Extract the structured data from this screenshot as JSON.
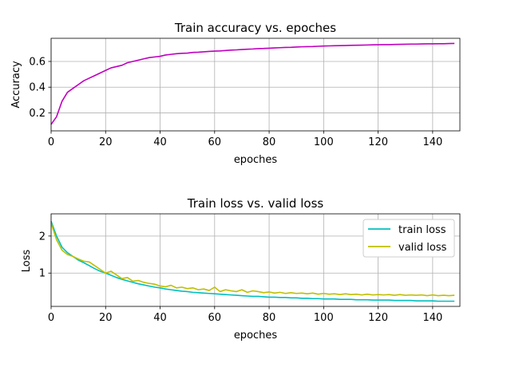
{
  "chart_data": [
    {
      "type": "line",
      "title": "Train accuracy vs. epoches",
      "xlabel": "epoches",
      "ylabel": "Accuracy",
      "xlim": [
        0,
        150
      ],
      "ylim": [
        0.06,
        0.78
      ],
      "xticks": [
        0,
        20,
        40,
        60,
        80,
        100,
        120,
        140
      ],
      "yticks": [
        0.2,
        0.4,
        0.6
      ],
      "ytick_labels": [
        "0.2",
        "0.4",
        "0.6"
      ],
      "grid": true,
      "series": [
        {
          "color": "#bf00bf",
          "x": [
            0,
            2,
            4,
            6,
            8,
            10,
            12,
            14,
            16,
            18,
            20,
            22,
            24,
            26,
            28,
            30,
            32,
            34,
            36,
            38,
            40,
            42,
            44,
            46,
            48,
            50,
            52,
            54,
            56,
            58,
            60,
            62,
            64,
            66,
            68,
            70,
            72,
            74,
            76,
            78,
            80,
            82,
            84,
            86,
            88,
            90,
            92,
            94,
            96,
            98,
            100,
            102,
            104,
            106,
            108,
            110,
            112,
            114,
            116,
            118,
            120,
            122,
            124,
            126,
            128,
            130,
            132,
            134,
            136,
            138,
            140,
            142,
            144,
            146,
            148
          ],
          "y": [
            0.11,
            0.17,
            0.29,
            0.36,
            0.39,
            0.42,
            0.45,
            0.47,
            0.49,
            0.51,
            0.53,
            0.55,
            0.56,
            0.57,
            0.59,
            0.6,
            0.61,
            0.62,
            0.63,
            0.635,
            0.64,
            0.65,
            0.655,
            0.66,
            0.663,
            0.665,
            0.67,
            0.672,
            0.675,
            0.678,
            0.68,
            0.682,
            0.685,
            0.688,
            0.69,
            0.693,
            0.695,
            0.697,
            0.7,
            0.701,
            0.703,
            0.705,
            0.707,
            0.709,
            0.71,
            0.712,
            0.714,
            0.715,
            0.716,
            0.718,
            0.72,
            0.721,
            0.722,
            0.723,
            0.724,
            0.725,
            0.726,
            0.727,
            0.728,
            0.729,
            0.73,
            0.731,
            0.731,
            0.732,
            0.733,
            0.734,
            0.735,
            0.735,
            0.736,
            0.737,
            0.737,
            0.738,
            0.738,
            0.739,
            0.74
          ]
        }
      ]
    },
    {
      "type": "line",
      "title": "Train loss vs. valid loss",
      "xlabel": "epoches",
      "ylabel": "Loss",
      "xlim": [
        0,
        150
      ],
      "ylim": [
        0.1,
        2.6
      ],
      "xticks": [
        0,
        20,
        40,
        60,
        80,
        100,
        120,
        140
      ],
      "yticks": [
        1,
        2
      ],
      "ytick_labels": [
        "1",
        "2"
      ],
      "grid": true,
      "legend": "top-right",
      "series": [
        {
          "name": "train loss",
          "color": "#00bfbf",
          "x": [
            0,
            2,
            4,
            6,
            8,
            10,
            12,
            14,
            16,
            18,
            20,
            22,
            24,
            26,
            28,
            30,
            32,
            34,
            36,
            38,
            40,
            42,
            44,
            46,
            48,
            50,
            52,
            54,
            56,
            58,
            60,
            62,
            64,
            66,
            68,
            70,
            72,
            74,
            76,
            78,
            80,
            82,
            84,
            86,
            88,
            90,
            92,
            94,
            96,
            98,
            100,
            102,
            104,
            106,
            108,
            110,
            112,
            114,
            116,
            118,
            120,
            122,
            124,
            126,
            128,
            130,
            132,
            134,
            136,
            138,
            140,
            142,
            144,
            146,
            148
          ],
          "y": [
            2.4,
            2.0,
            1.7,
            1.55,
            1.45,
            1.35,
            1.28,
            1.2,
            1.12,
            1.05,
            1.0,
            0.94,
            0.88,
            0.83,
            0.79,
            0.75,
            0.71,
            0.68,
            0.65,
            0.62,
            0.6,
            0.57,
            0.55,
            0.53,
            0.51,
            0.5,
            0.48,
            0.47,
            0.46,
            0.45,
            0.44,
            0.43,
            0.42,
            0.41,
            0.4,
            0.39,
            0.38,
            0.37,
            0.37,
            0.36,
            0.35,
            0.35,
            0.34,
            0.34,
            0.33,
            0.33,
            0.32,
            0.32,
            0.31,
            0.31,
            0.3,
            0.3,
            0.3,
            0.29,
            0.29,
            0.29,
            0.28,
            0.28,
            0.28,
            0.27,
            0.27,
            0.27,
            0.27,
            0.26,
            0.26,
            0.26,
            0.26,
            0.25,
            0.25,
            0.25,
            0.25,
            0.24,
            0.24,
            0.24,
            0.24
          ]
        },
        {
          "name": "valid loss",
          "color": "#bfbf00",
          "x": [
            0,
            2,
            4,
            6,
            8,
            10,
            12,
            14,
            16,
            18,
            20,
            22,
            24,
            26,
            28,
            30,
            32,
            34,
            36,
            38,
            40,
            42,
            44,
            46,
            48,
            50,
            52,
            54,
            56,
            58,
            60,
            62,
            64,
            66,
            68,
            70,
            72,
            74,
            76,
            78,
            80,
            82,
            84,
            86,
            88,
            90,
            92,
            94,
            96,
            98,
            100,
            102,
            104,
            106,
            108,
            110,
            112,
            114,
            116,
            118,
            120,
            122,
            124,
            126,
            128,
            130,
            132,
            134,
            136,
            138,
            140,
            142,
            144,
            146,
            148
          ],
          "y": [
            2.35,
            1.9,
            1.62,
            1.5,
            1.45,
            1.38,
            1.32,
            1.3,
            1.2,
            1.1,
            1.0,
            1.05,
            0.95,
            0.85,
            0.88,
            0.78,
            0.8,
            0.75,
            0.72,
            0.7,
            0.65,
            0.63,
            0.67,
            0.6,
            0.62,
            0.58,
            0.6,
            0.55,
            0.57,
            0.53,
            0.62,
            0.5,
            0.55,
            0.52,
            0.5,
            0.55,
            0.48,
            0.52,
            0.5,
            0.47,
            0.49,
            0.46,
            0.48,
            0.45,
            0.47,
            0.45,
            0.46,
            0.44,
            0.46,
            0.43,
            0.45,
            0.43,
            0.44,
            0.42,
            0.44,
            0.42,
            0.43,
            0.41,
            0.43,
            0.41,
            0.42,
            0.41,
            0.42,
            0.4,
            0.42,
            0.4,
            0.41,
            0.4,
            0.41,
            0.39,
            0.41,
            0.39,
            0.4,
            0.39,
            0.4
          ]
        }
      ]
    }
  ]
}
